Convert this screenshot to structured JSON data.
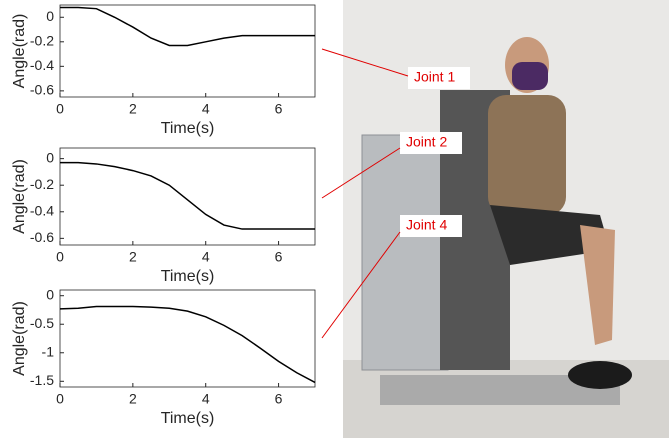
{
  "chart_data": [
    {
      "type": "line",
      "xlabel": "Time(s)",
      "ylabel": "Angle(rad)",
      "x": [
        0,
        0.5,
        1,
        1.5,
        2,
        2.5,
        3,
        3.5,
        4,
        4.5,
        5,
        5.5,
        6,
        6.5,
        7
      ],
      "series": [
        {
          "color": "#000000",
          "values": [
            0.08,
            0.08,
            0.07,
            0.0,
            -0.08,
            -0.17,
            -0.23,
            -0.23,
            -0.2,
            -0.17,
            -0.15,
            -0.15,
            -0.15,
            -0.15,
            -0.15
          ]
        }
      ],
      "xlim": [
        0,
        7
      ],
      "xticks": [
        0,
        2,
        4,
        6
      ],
      "ylim": [
        -0.65,
        0.1
      ],
      "yticks": [
        0,
        -0.2,
        -0.4,
        -0.6
      ]
    },
    {
      "type": "line",
      "xlabel": "Time(s)",
      "ylabel": "Angle(rad)",
      "x": [
        0,
        0.5,
        1,
        1.5,
        2,
        2.5,
        3,
        3.5,
        4,
        4.5,
        5,
        5.5,
        6,
        6.5,
        7
      ],
      "series": [
        {
          "color": "#000000",
          "values": [
            -0.03,
            -0.03,
            -0.04,
            -0.06,
            -0.09,
            -0.13,
            -0.2,
            -0.31,
            -0.42,
            -0.5,
            -0.53,
            -0.53,
            -0.53,
            -0.53,
            -0.53
          ]
        }
      ],
      "xlim": [
        0,
        7
      ],
      "xticks": [
        0,
        2,
        4,
        6
      ],
      "ylim": [
        -0.65,
        0.08
      ],
      "yticks": [
        0,
        -0.2,
        -0.4,
        -0.6
      ]
    },
    {
      "type": "line",
      "xlabel": "Time(s)",
      "ylabel": "Angle(rad)",
      "x": [
        0,
        0.5,
        1,
        1.5,
        2,
        2.5,
        3,
        3.5,
        4,
        4.5,
        5,
        5.5,
        6,
        6.5,
        7
      ],
      "series": [
        {
          "color": "#000000",
          "values": [
            -0.23,
            -0.22,
            -0.19,
            -0.19,
            -0.19,
            -0.2,
            -0.22,
            -0.27,
            -0.37,
            -0.52,
            -0.7,
            -0.92,
            -1.15,
            -1.35,
            -1.52
          ]
        }
      ],
      "xlim": [
        0,
        7
      ],
      "xticks": [
        0,
        2,
        4,
        6
      ],
      "ylim": [
        -1.6,
        0.1
      ],
      "yticks": [
        0,
        -0.5,
        -1,
        -1.5
      ]
    }
  ],
  "photo": {
    "labels": [
      "Joint 1",
      "Joint 2",
      "Joint 4"
    ]
  }
}
